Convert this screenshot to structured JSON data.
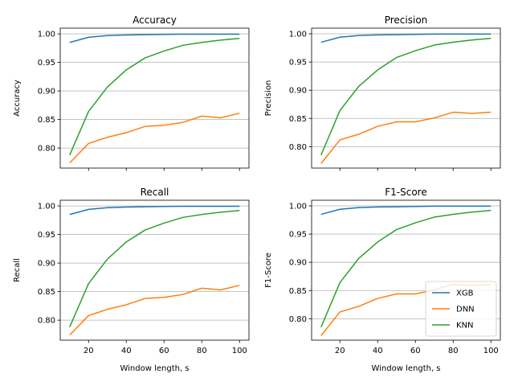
{
  "chart_data": [
    {
      "type": "line",
      "title": "Accuracy",
      "ylabel": "Accuracy",
      "xlabel": "",
      "x": [
        10,
        20,
        30,
        40,
        50,
        60,
        70,
        80,
        90,
        100
      ],
      "xlim": [
        5,
        105
      ],
      "ylim": [
        0.765,
        1.01
      ],
      "xticks": [
        20,
        40,
        60,
        80,
        100
      ],
      "xtick_labels_shown": false,
      "yticks": [
        0.8,
        0.85,
        0.9,
        0.95,
        1.0
      ],
      "ytick_labels": [
        "0.80",
        "0.85",
        "0.90",
        "0.95",
        "1.00"
      ],
      "grid": "y",
      "series": [
        {
          "name": "XGB",
          "color": "#1f77b4",
          "values": [
            0.985,
            0.994,
            0.997,
            0.998,
            0.9985,
            0.999,
            0.9995,
            0.9995,
            0.9995,
            0.9995
          ]
        },
        {
          "name": "DNN",
          "color": "#ff7f0e",
          "values": [
            0.774,
            0.808,
            0.819,
            0.827,
            0.838,
            0.84,
            0.845,
            0.856,
            0.853,
            0.861
          ]
        },
        {
          "name": "KNN",
          "color": "#2ca02c",
          "values": [
            0.788,
            0.864,
            0.907,
            0.937,
            0.958,
            0.97,
            0.98,
            0.985,
            0.989,
            0.992
          ]
        }
      ]
    },
    {
      "type": "line",
      "title": "Precision",
      "ylabel": "Precision",
      "xlabel": "",
      "x": [
        10,
        20,
        30,
        40,
        50,
        60,
        70,
        80,
        90,
        100
      ],
      "xlim": [
        5,
        105
      ],
      "ylim": [
        0.762,
        1.01
      ],
      "xticks": [
        20,
        40,
        60,
        80,
        100
      ],
      "xtick_labels_shown": false,
      "yticks": [
        0.8,
        0.85,
        0.9,
        0.95,
        1.0
      ],
      "ytick_labels": [
        "0.80",
        "0.85",
        "0.90",
        "0.95",
        "1.00"
      ],
      "grid": "y",
      "series": [
        {
          "name": "XGB",
          "color": "#1f77b4",
          "values": [
            0.985,
            0.994,
            0.997,
            0.998,
            0.9985,
            0.999,
            0.9995,
            0.9995,
            0.9995,
            0.9995
          ]
        },
        {
          "name": "DNN",
          "color": "#ff7f0e",
          "values": [
            0.77,
            0.812,
            0.822,
            0.836,
            0.844,
            0.844,
            0.851,
            0.861,
            0.859,
            0.861
          ]
        },
        {
          "name": "KNN",
          "color": "#2ca02c",
          "values": [
            0.785,
            0.864,
            0.907,
            0.936,
            0.958,
            0.97,
            0.98,
            0.985,
            0.989,
            0.992
          ]
        }
      ]
    },
    {
      "type": "line",
      "title": "Recall",
      "ylabel": "Recall",
      "xlabel": "Window length, s",
      "x": [
        10,
        20,
        30,
        40,
        50,
        60,
        70,
        80,
        90,
        100
      ],
      "xlim": [
        5,
        105
      ],
      "ylim": [
        0.765,
        1.01
      ],
      "xticks": [
        20,
        40,
        60,
        80,
        100
      ],
      "xtick_labels": [
        "20",
        "40",
        "60",
        "80",
        "100"
      ],
      "xtick_labels_shown": true,
      "yticks": [
        0.8,
        0.85,
        0.9,
        0.95,
        1.0
      ],
      "ytick_labels": [
        "0.80",
        "0.85",
        "0.90",
        "0.95",
        "1.00"
      ],
      "grid": "y",
      "series": [
        {
          "name": "XGB",
          "color": "#1f77b4",
          "values": [
            0.985,
            0.994,
            0.997,
            0.998,
            0.9985,
            0.999,
            0.9995,
            0.9995,
            0.9995,
            0.9995
          ]
        },
        {
          "name": "DNN",
          "color": "#ff7f0e",
          "values": [
            0.774,
            0.808,
            0.819,
            0.827,
            0.838,
            0.84,
            0.845,
            0.856,
            0.853,
            0.861
          ]
        },
        {
          "name": "KNN",
          "color": "#2ca02c",
          "values": [
            0.788,
            0.864,
            0.907,
            0.937,
            0.958,
            0.97,
            0.98,
            0.985,
            0.989,
            0.992
          ]
        }
      ]
    },
    {
      "type": "line",
      "title": "F1-Score",
      "ylabel": "F1-Score",
      "xlabel": "Window length, s",
      "x": [
        10,
        20,
        30,
        40,
        50,
        60,
        70,
        80,
        90,
        100
      ],
      "xlim": [
        5,
        105
      ],
      "ylim": [
        0.762,
        1.01
      ],
      "xticks": [
        20,
        40,
        60,
        80,
        100
      ],
      "xtick_labels": [
        "20",
        "40",
        "60",
        "80",
        "100"
      ],
      "xtick_labels_shown": true,
      "yticks": [
        0.8,
        0.85,
        0.9,
        0.95,
        1.0
      ],
      "ytick_labels": [
        "0.80",
        "0.85",
        "0.90",
        "0.95",
        "1.00"
      ],
      "grid": "y",
      "legend": "lower-right",
      "series": [
        {
          "name": "XGB",
          "color": "#1f77b4",
          "values": [
            0.985,
            0.994,
            0.997,
            0.998,
            0.9985,
            0.999,
            0.9995,
            0.9995,
            0.9995,
            0.9995
          ]
        },
        {
          "name": "DNN",
          "color": "#ff7f0e",
          "values": [
            0.77,
            0.812,
            0.822,
            0.836,
            0.844,
            0.844,
            0.851,
            0.861,
            0.859,
            0.861
          ]
        },
        {
          "name": "KNN",
          "color": "#2ca02c",
          "values": [
            0.785,
            0.864,
            0.907,
            0.936,
            0.958,
            0.97,
            0.98,
            0.985,
            0.989,
            0.992
          ]
        }
      ]
    }
  ]
}
